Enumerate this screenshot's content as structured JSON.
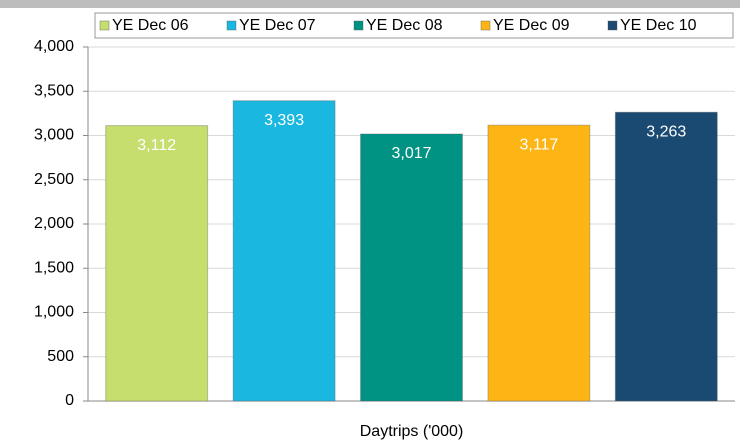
{
  "chart_data": {
    "type": "bar",
    "categories": [
      "Daytrips ('000)"
    ],
    "series": [
      {
        "name": "YE Dec 06",
        "color": "#c5de6e",
        "values": [
          3112
        ],
        "value_labels": [
          "3,112"
        ]
      },
      {
        "name": "YE Dec 07",
        "color": "#1ab7e0",
        "values": [
          3393
        ],
        "value_labels": [
          "3,393"
        ]
      },
      {
        "name": "YE Dec 08",
        "color": "#009384",
        "values": [
          3017
        ],
        "value_labels": [
          "3,017"
        ]
      },
      {
        "name": "YE Dec 09",
        "color": "#fdb515",
        "values": [
          3117
        ],
        "value_labels": [
          "3,117"
        ]
      },
      {
        "name": "YE Dec 10",
        "color": "#1a4a72",
        "values": [
          3263
        ],
        "value_labels": [
          "3,263"
        ]
      }
    ],
    "ylim": [
      0,
      4000
    ],
    "yticks": [
      0,
      500,
      {
        "value": 1000,
        "label": "1,000"
      },
      {
        "value": 1500,
        "label": "1,500"
      },
      {
        "value": 2000,
        "label": "2,000"
      },
      {
        "value": 2500,
        "label": "2,500"
      },
      {
        "value": 3000,
        "label": "3,000"
      },
      {
        "value": 3500,
        "label": "3,500"
      },
      {
        "value": 4000,
        "label": "4,000"
      }
    ],
    "grid": true,
    "legend": "top"
  }
}
